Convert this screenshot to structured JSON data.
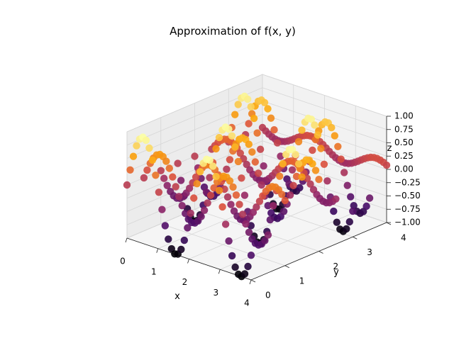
{
  "chart_data": {
    "type": "scatter",
    "title": "Approximation of f(x, y)",
    "xlabel": "x",
    "ylabel": "y",
    "zlabel": "z",
    "xlim": [
      0,
      4
    ],
    "ylim": [
      0,
      4
    ],
    "zlim": [
      -1,
      1
    ],
    "x_ticks": [
      "0",
      "1",
      "2",
      "3",
      "4"
    ],
    "y_ticks": [
      "0",
      "1",
      "2",
      "3",
      "4"
    ],
    "z_ticks": [
      "−1.00",
      "−0.75",
      "−0.50",
      "−0.25",
      "0.00",
      "0.25",
      "0.50",
      "0.75",
      "1.00"
    ],
    "surface": "z = sin(3x)·cos(2y)",
    "x_samples": 40,
    "y_samples": 9,
    "colormap": [
      "#000004",
      "#420a68",
      "#932667",
      "#dd513a",
      "#fca50a",
      "#fcffa4"
    ],
    "grid": true,
    "legend": "none"
  }
}
